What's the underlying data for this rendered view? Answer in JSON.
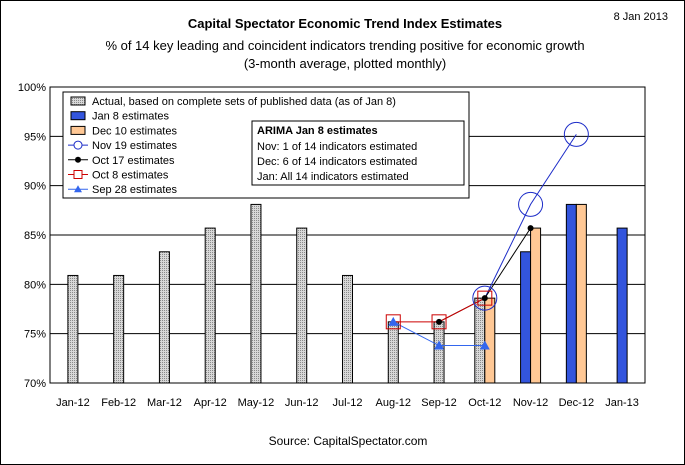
{
  "chart_data": {
    "type": "bar",
    "title": "Capital Spectator Economic Trend Index Estimates",
    "date": "8 Jan 2013",
    "subtitle1": "% of 14 key leading and coincident indicators trending positive for economic growth",
    "subtitle2": "(3-month average, plotted monthly)",
    "source": "Source: CapitalSpectator.com",
    "categories": [
      "Jan-12",
      "Feb-12",
      "Mar-12",
      "Apr-12",
      "May-12",
      "Jun-12",
      "Jul-12",
      "Aug-12",
      "Sep-12",
      "Oct-12",
      "Nov-12",
      "Dec-12",
      "Jan-13"
    ],
    "ylim": [
      70,
      100
    ],
    "yticks": [
      "70%",
      "75%",
      "80%",
      "85%",
      "90%",
      "95%",
      "100%"
    ],
    "grid": true,
    "legend_position": "top-left",
    "colors": {
      "actual": "#c0c0c0",
      "jan8": "#3355dd",
      "dec10": "#ffc895",
      "nov19": "#1c2cc8",
      "oct17": "#000000",
      "oct8": "#cc0000",
      "sep28": "#3366ee"
    },
    "series": [
      {
        "name": "Actual, based on complete sets of published data (as of Jan 8)",
        "kind": "bar",
        "values": [
          80.9,
          80.9,
          83.3,
          85.7,
          88.1,
          85.7,
          80.9,
          76.2,
          76.2,
          78.6,
          null,
          null,
          null
        ]
      },
      {
        "name": "Jan 8 estimates",
        "kind": "bar",
        "values": [
          null,
          null,
          null,
          null,
          null,
          null,
          null,
          null,
          null,
          null,
          83.3,
          88.1,
          85.7
        ]
      },
      {
        "name": "Dec 10 estimates",
        "kind": "bar",
        "values": [
          null,
          null,
          null,
          null,
          null,
          null,
          null,
          null,
          null,
          78.6,
          85.7,
          88.1,
          null
        ]
      },
      {
        "name": "Nov 19 estimates",
        "kind": "line-circle",
        "values": [
          null,
          null,
          null,
          null,
          null,
          null,
          null,
          null,
          null,
          78.6,
          88.1,
          95.2,
          null
        ]
      },
      {
        "name": "Oct 17 estimates",
        "kind": "line-dot",
        "values": [
          null,
          null,
          null,
          null,
          null,
          null,
          null,
          null,
          76.2,
          78.6,
          85.7,
          null,
          null
        ]
      },
      {
        "name": "Oct 8 estimates",
        "kind": "line-square",
        "values": [
          null,
          null,
          null,
          null,
          null,
          null,
          null,
          76.2,
          76.2,
          78.6,
          null,
          null,
          null
        ]
      },
      {
        "name": "Sep 28 estimates",
        "kind": "line-triangle",
        "values": [
          null,
          null,
          null,
          null,
          null,
          null,
          null,
          76.2,
          73.8,
          73.8,
          null,
          null,
          null
        ]
      }
    ],
    "annotation": {
      "title": "ARIMA Jan 8 estimates",
      "lines": [
        "Nov: 1 of 14 indicators estimated",
        "Dec: 6 of 14 indicators estimated",
        "Jan: All 14 indicators estimated"
      ]
    }
  }
}
